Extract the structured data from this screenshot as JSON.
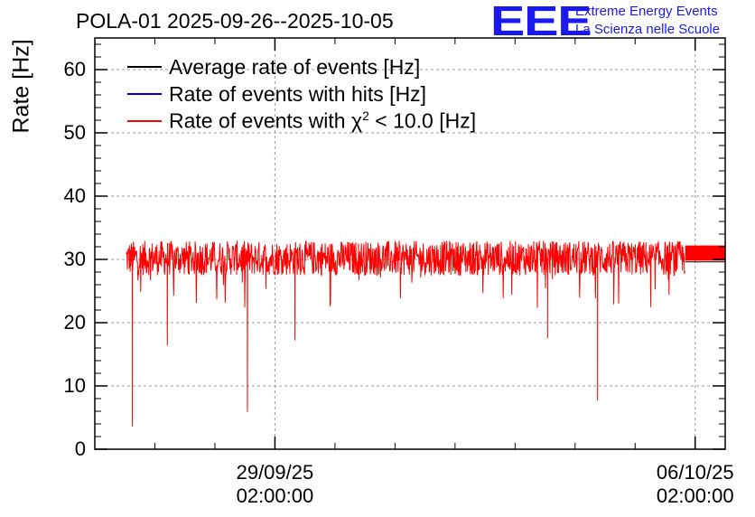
{
  "chart_data": {
    "type": "line",
    "title": "POLA-01 2025-09-26--2025-10-05",
    "ylabel": "Rate [Hz]",
    "xlabel": "",
    "ylim": [
      0,
      65
    ],
    "yticks": [
      "0",
      "10",
      "20",
      "30",
      "40",
      "50",
      "60"
    ],
    "xticks": [
      {
        "date": "29/09/25",
        "time": "02:00:00"
      },
      {
        "date": "06/10/25",
        "time": "02:00:00"
      }
    ],
    "grid": true,
    "legend_position": "top-left",
    "series": [
      {
        "name": "Average rate of events [Hz]",
        "color": "#000000",
        "baseline": 30.2
      },
      {
        "name": "Rate of events with hits [Hz]",
        "color": "#0000cc",
        "baseline": 30.2
      },
      {
        "name": "Rate of events with χ² < 10.0 [Hz]",
        "color": "#ff0000",
        "baseline": 30.2
      }
    ],
    "notable_dips": [
      {
        "x": "2025-09-26T17:00",
        "y": 3.6
      },
      {
        "x": "2025-09-28T15:00",
        "y": 5.9
      },
      {
        "x": "2025-09-27T07:00",
        "y": 16.4
      },
      {
        "x": "2025-09-29T10:00",
        "y": 17.2
      },
      {
        "x": "2025-10-04T11:00",
        "y": 7.7
      },
      {
        "x": "2025-10-03T15:00",
        "y": 17.5
      }
    ]
  },
  "logo": {
    "mark": "EEE",
    "line1": "Extreme Energy Events",
    "line2": "La Scienza nelle Scuole",
    "color": "#1a1aee"
  },
  "legend": {
    "item1": "Average rate of events [Hz]",
    "item2": "Rate of events with hits [Hz]",
    "item3_prefix": "Rate of events with χ",
    "item3_sup": "2",
    "item3_suffix": " < 10.0 [Hz]"
  }
}
